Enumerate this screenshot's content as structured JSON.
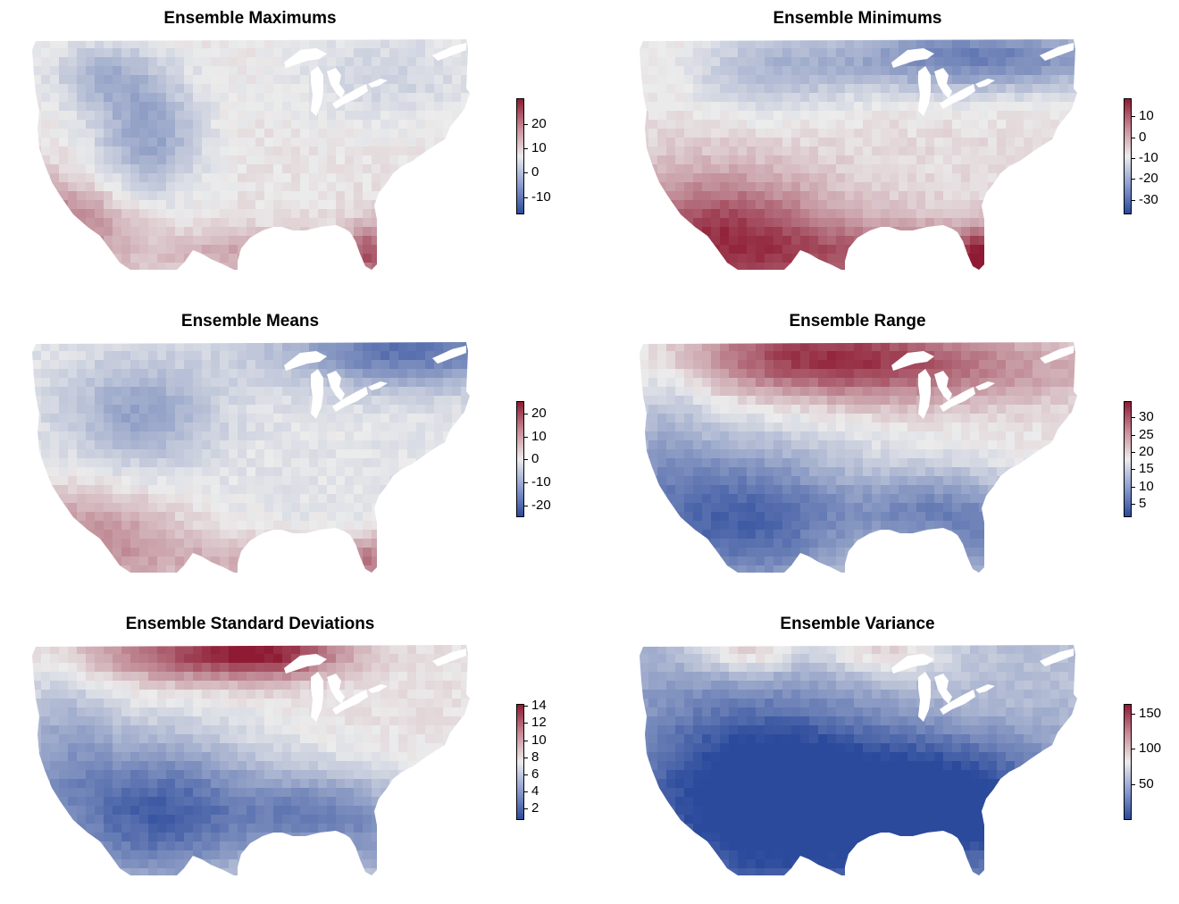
{
  "colors": {
    "low": "#2b4a9c",
    "mid": "#ececec",
    "high": "#8e1b33",
    "background": "#ffffff"
  },
  "panels": [
    {
      "title": "Ensemble Maximums",
      "legend_ticks": [
        "20",
        "10",
        "0",
        "-10"
      ],
      "pattern": "maximums"
    },
    {
      "title": "Ensemble Minimums",
      "legend_ticks": [
        "10",
        "0",
        "-10",
        "-20",
        "-30"
      ],
      "pattern": "minimums"
    },
    {
      "title": "Ensemble Means",
      "legend_ticks": [
        "20",
        "10",
        "0",
        "-10",
        "-20"
      ],
      "pattern": "means"
    },
    {
      "title": "Ensemble Range",
      "legend_ticks": [
        "30",
        "25",
        "20",
        "15",
        "10",
        "5"
      ],
      "pattern": "range"
    },
    {
      "title": "Ensemble Standard Deviations",
      "legend_ticks": [
        "14",
        "12",
        "10",
        "8",
        "6",
        "4",
        "2"
      ],
      "pattern": "spread"
    },
    {
      "title": "Ensemble Variance",
      "legend_ticks": [
        "150",
        "100",
        "50"
      ],
      "pattern": "variance"
    }
  ]
}
